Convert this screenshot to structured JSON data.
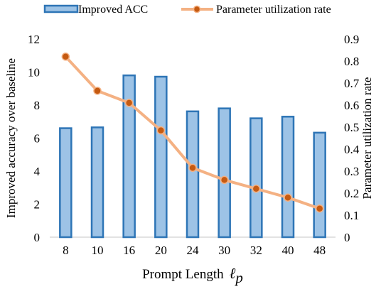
{
  "chart_data": {
    "type": "bar+line",
    "categories": [
      "8",
      "10",
      "16",
      "20",
      "24",
      "30",
      "32",
      "40",
      "48"
    ],
    "series": [
      {
        "name": "Improved ACC",
        "type": "bar",
        "axis": "left",
        "values": [
          6.6,
          6.65,
          9.8,
          9.72,
          7.62,
          7.8,
          7.2,
          7.3,
          6.33
        ],
        "color": "#9dc3e6",
        "edge_color": "#2e75b6"
      },
      {
        "name": "Parameter utilization rate",
        "type": "line",
        "axis": "right",
        "values": [
          0.82,
          0.665,
          0.61,
          0.485,
          0.315,
          0.26,
          0.22,
          0.18,
          0.13
        ],
        "color": "#f4b183",
        "marker_color": "#c55a11"
      }
    ],
    "xlabel_text": "Prompt Length",
    "xlabel_symbol": "ℓ",
    "xlabel_subscript": "p",
    "ylabel": "Improved accuracy over baseline",
    "ylabel_right": "Parameter utilization rate",
    "ylim": [
      0,
      12
    ],
    "yticks": [
      "0",
      "2",
      "4",
      "6",
      "8",
      "10",
      "12"
    ],
    "ylim_right": [
      0,
      0.9
    ],
    "yticks_right": [
      "0",
      "0.1",
      "0.2",
      "0.3",
      "0.4",
      "0.5",
      "0.6",
      "0.7",
      "0.8",
      "0.9"
    ],
    "grid": false,
    "legend_position": "top"
  }
}
